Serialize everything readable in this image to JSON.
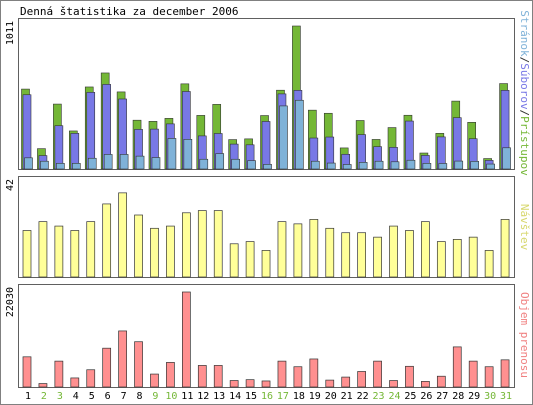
{
  "chart_data": [
    {
      "type": "bar",
      "title": "Denná štatistika za december 2006",
      "ylabel_parts": [
        "Stránok",
        "/",
        "Súborov",
        "/",
        "Prístupov"
      ],
      "ylabel_colors": [
        "#7fb2d8",
        "#333333",
        "#7878e6",
        "#333333",
        "#74b736"
      ],
      "ymax_label": "1011",
      "ylim": [
        0,
        1011
      ],
      "series": [
        {
          "name": "Prístupov",
          "color": "#74b736",
          "values": [
            565,
            144,
            459,
            269,
            580,
            679,
            545,
            345,
            337,
            358,
            602,
            379,
            457,
            208,
            213,
            378,
            557,
            1011,
            416,
            394,
            149,
            343,
            209,
            293,
            380,
            113,
            252,
            480,
            330,
            74,
            604
          ]
        },
        {
          "name": "Súborov",
          "color": "#7878e6",
          "values": [
            525,
            95,
            306,
            252,
            542,
            598,
            495,
            280,
            282,
            319,
            548,
            234,
            251,
            176,
            171,
            336,
            531,
            556,
            219,
            226,
            104,
            243,
            158,
            153,
            339,
            96,
            227,
            363,
            214,
            61,
            556
          ]
        },
        {
          "name": "Stránok",
          "color": "#7fb2d8",
          "values": [
            79,
            55,
            40,
            40,
            76,
            103,
            103,
            91,
            81,
            216,
            210,
            69,
            109,
            69,
            59,
            33,
            446,
            486,
            55,
            42,
            32,
            47,
            55,
            51,
            62,
            40,
            39,
            56,
            54,
            35,
            150
          ]
        }
      ]
    },
    {
      "type": "bar",
      "ylabel": "Návštev",
      "ylabel_color": "#d7d76d",
      "ymax_label": "42",
      "ylim": [
        0,
        42
      ],
      "series": [
        {
          "name": "Návštev",
          "color": "#ffff99",
          "values": [
            21,
            25,
            23,
            21,
            25,
            33,
            38,
            28,
            22,
            23,
            29,
            30,
            30,
            15,
            16,
            12,
            25,
            24,
            26,
            22,
            20,
            20,
            18,
            23,
            21,
            25,
            16,
            17,
            18,
            12,
            26
          ]
        }
      ]
    },
    {
      "type": "bar",
      "ylabel": "Objem prenosu",
      "ylabel_color": "#f08080",
      "ymax_label": "22030",
      "ylim": [
        0,
        22030
      ],
      "series": [
        {
          "name": "Objem prenosu",
          "color": "#ff9090",
          "values": [
            7000,
            800,
            6000,
            2100,
            4000,
            9000,
            13000,
            10500,
            3000,
            5700,
            22030,
            5000,
            5000,
            1500,
            1700,
            1400,
            6000,
            4700,
            6500,
            1600,
            2300,
            3600,
            6000,
            1500,
            4800,
            1300,
            2500,
            9300,
            6000,
            4700,
            6300
          ]
        }
      ]
    }
  ],
  "days": [
    "1",
    "2",
    "3",
    "4",
    "5",
    "6",
    "7",
    "8",
    "9",
    "10",
    "11",
    "12",
    "13",
    "14",
    "15",
    "16",
    "17",
    "18",
    "19",
    "20",
    "21",
    "22",
    "23",
    "24",
    "25",
    "26",
    "27",
    "28",
    "29",
    "30",
    "31"
  ],
  "weekend_days": [
    2,
    3,
    9,
    10,
    16,
    17,
    23,
    24,
    30,
    31
  ],
  "day_label_color": "#000000",
  "weekend_label_color": "#74b736"
}
